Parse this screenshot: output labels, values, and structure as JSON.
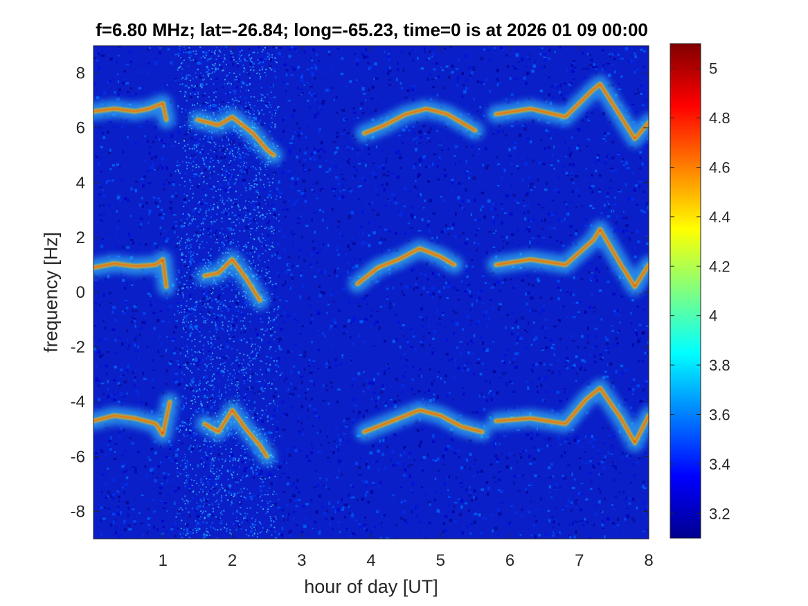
{
  "chart_data": {
    "type": "heatmap",
    "title": "f=6.80 MHz;  lat=-26.84; long=-65.23, time=0 is at 2026 01 09 00:00",
    "xlabel": "hour of day [UT]",
    "ylabel": "frequency [Hz]",
    "xlim": [
      0,
      8
    ],
    "ylim": [
      -9,
      9
    ],
    "x_ticks": [
      1,
      2,
      3,
      4,
      5,
      6,
      7,
      8
    ],
    "y_ticks": [
      8,
      6,
      4,
      2,
      0,
      -2,
      -4,
      -6,
      -8
    ],
    "colorbar": {
      "colormap": "jet",
      "range": [
        3.1,
        5.1
      ],
      "ticks": [
        5,
        4.8,
        4.6,
        4.4,
        4.2,
        4,
        3.8,
        3.6,
        3.4,
        3.2
      ]
    },
    "traces": [
      {
        "x": [
          0.0,
          0.3,
          0.6,
          0.8,
          1.0,
          1.05
        ],
        "y": [
          6.6,
          6.7,
          6.6,
          6.7,
          6.9,
          6.3
        ]
      },
      {
        "x": [
          0.0,
          0.3,
          0.6,
          0.9,
          1.0,
          1.05
        ],
        "y": [
          0.9,
          1.05,
          0.95,
          1.0,
          1.2,
          0.2
        ]
      },
      {
        "x": [
          0.0,
          0.3,
          0.6,
          0.9,
          1.0,
          1.1
        ],
        "y": [
          -4.7,
          -4.5,
          -4.6,
          -4.8,
          -5.2,
          -4.0
        ]
      },
      {
        "x": [
          1.5,
          1.8,
          2.0,
          2.3,
          2.5,
          2.6
        ],
        "y": [
          6.3,
          6.1,
          6.4,
          5.8,
          5.2,
          5.0
        ]
      },
      {
        "x": [
          1.6,
          1.8,
          2.0,
          2.2,
          2.4
        ],
        "y": [
          0.6,
          0.7,
          1.2,
          0.5,
          -0.3
        ]
      },
      {
        "x": [
          1.6,
          1.8,
          2.0,
          2.2,
          2.4,
          2.5
        ],
        "y": [
          -4.8,
          -5.1,
          -4.3,
          -5.0,
          -5.6,
          -6.0
        ]
      },
      {
        "x": [
          3.9,
          4.2,
          4.5,
          4.8,
          5.1,
          5.5
        ],
        "y": [
          5.8,
          6.1,
          6.5,
          6.7,
          6.5,
          5.9
        ]
      },
      {
        "x": [
          3.8,
          4.1,
          4.4,
          4.7,
          5.0,
          5.2
        ],
        "y": [
          0.3,
          0.9,
          1.2,
          1.6,
          1.3,
          1.0
        ]
      },
      {
        "x": [
          3.9,
          4.3,
          4.7,
          5.0,
          5.3,
          5.6
        ],
        "y": [
          -5.1,
          -4.7,
          -4.3,
          -4.5,
          -4.9,
          -5.1
        ]
      },
      {
        "x": [
          5.8,
          6.3,
          6.8,
          7.2,
          7.3,
          7.6,
          7.8,
          8.0
        ],
        "y": [
          6.5,
          6.7,
          6.4,
          7.4,
          7.6,
          6.4,
          5.6,
          6.2
        ]
      },
      {
        "x": [
          5.8,
          6.3,
          6.8,
          7.2,
          7.3,
          7.6,
          7.8,
          8.0
        ],
        "y": [
          1.0,
          1.2,
          1.0,
          1.9,
          2.3,
          1.0,
          0.2,
          1.0
        ]
      },
      {
        "x": [
          5.8,
          6.3,
          6.8,
          7.1,
          7.3,
          7.6,
          7.8,
          8.0
        ],
        "y": [
          -4.7,
          -4.6,
          -4.8,
          -3.9,
          -3.5,
          -4.6,
          -5.5,
          -4.5
        ]
      }
    ]
  }
}
